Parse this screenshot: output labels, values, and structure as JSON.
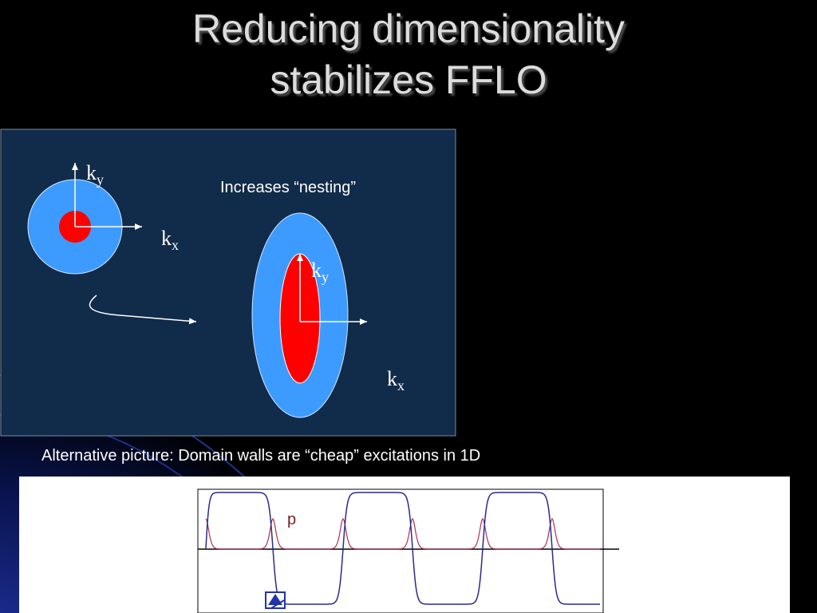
{
  "slide": {
    "title_line1": "Reducing dimensionality",
    "title_line2": "stabilizes FFLO",
    "annotation": "Increases “nesting”",
    "caption": "Alternative picture: Domain walls are “cheap” excitations in 1D",
    "plot_label": "p"
  },
  "axes": {
    "left": {
      "ky_main": "k",
      "ky_sub": "y",
      "kx_main": "k",
      "kx_sub": "x"
    },
    "right": {
      "ky_main": "k",
      "ky_sub": "y",
      "kx_main": "k",
      "kx_sub": "x"
    }
  },
  "colors": {
    "panel": "#112b4a",
    "outer_fermi_surface": "#3d9bff",
    "inner_fermi_surface": "#ff0000",
    "order_parameter_curve": "#2a2a8c",
    "density_curve": "#b03050"
  },
  "icons": {
    "nav": "home-nav-icon"
  }
}
